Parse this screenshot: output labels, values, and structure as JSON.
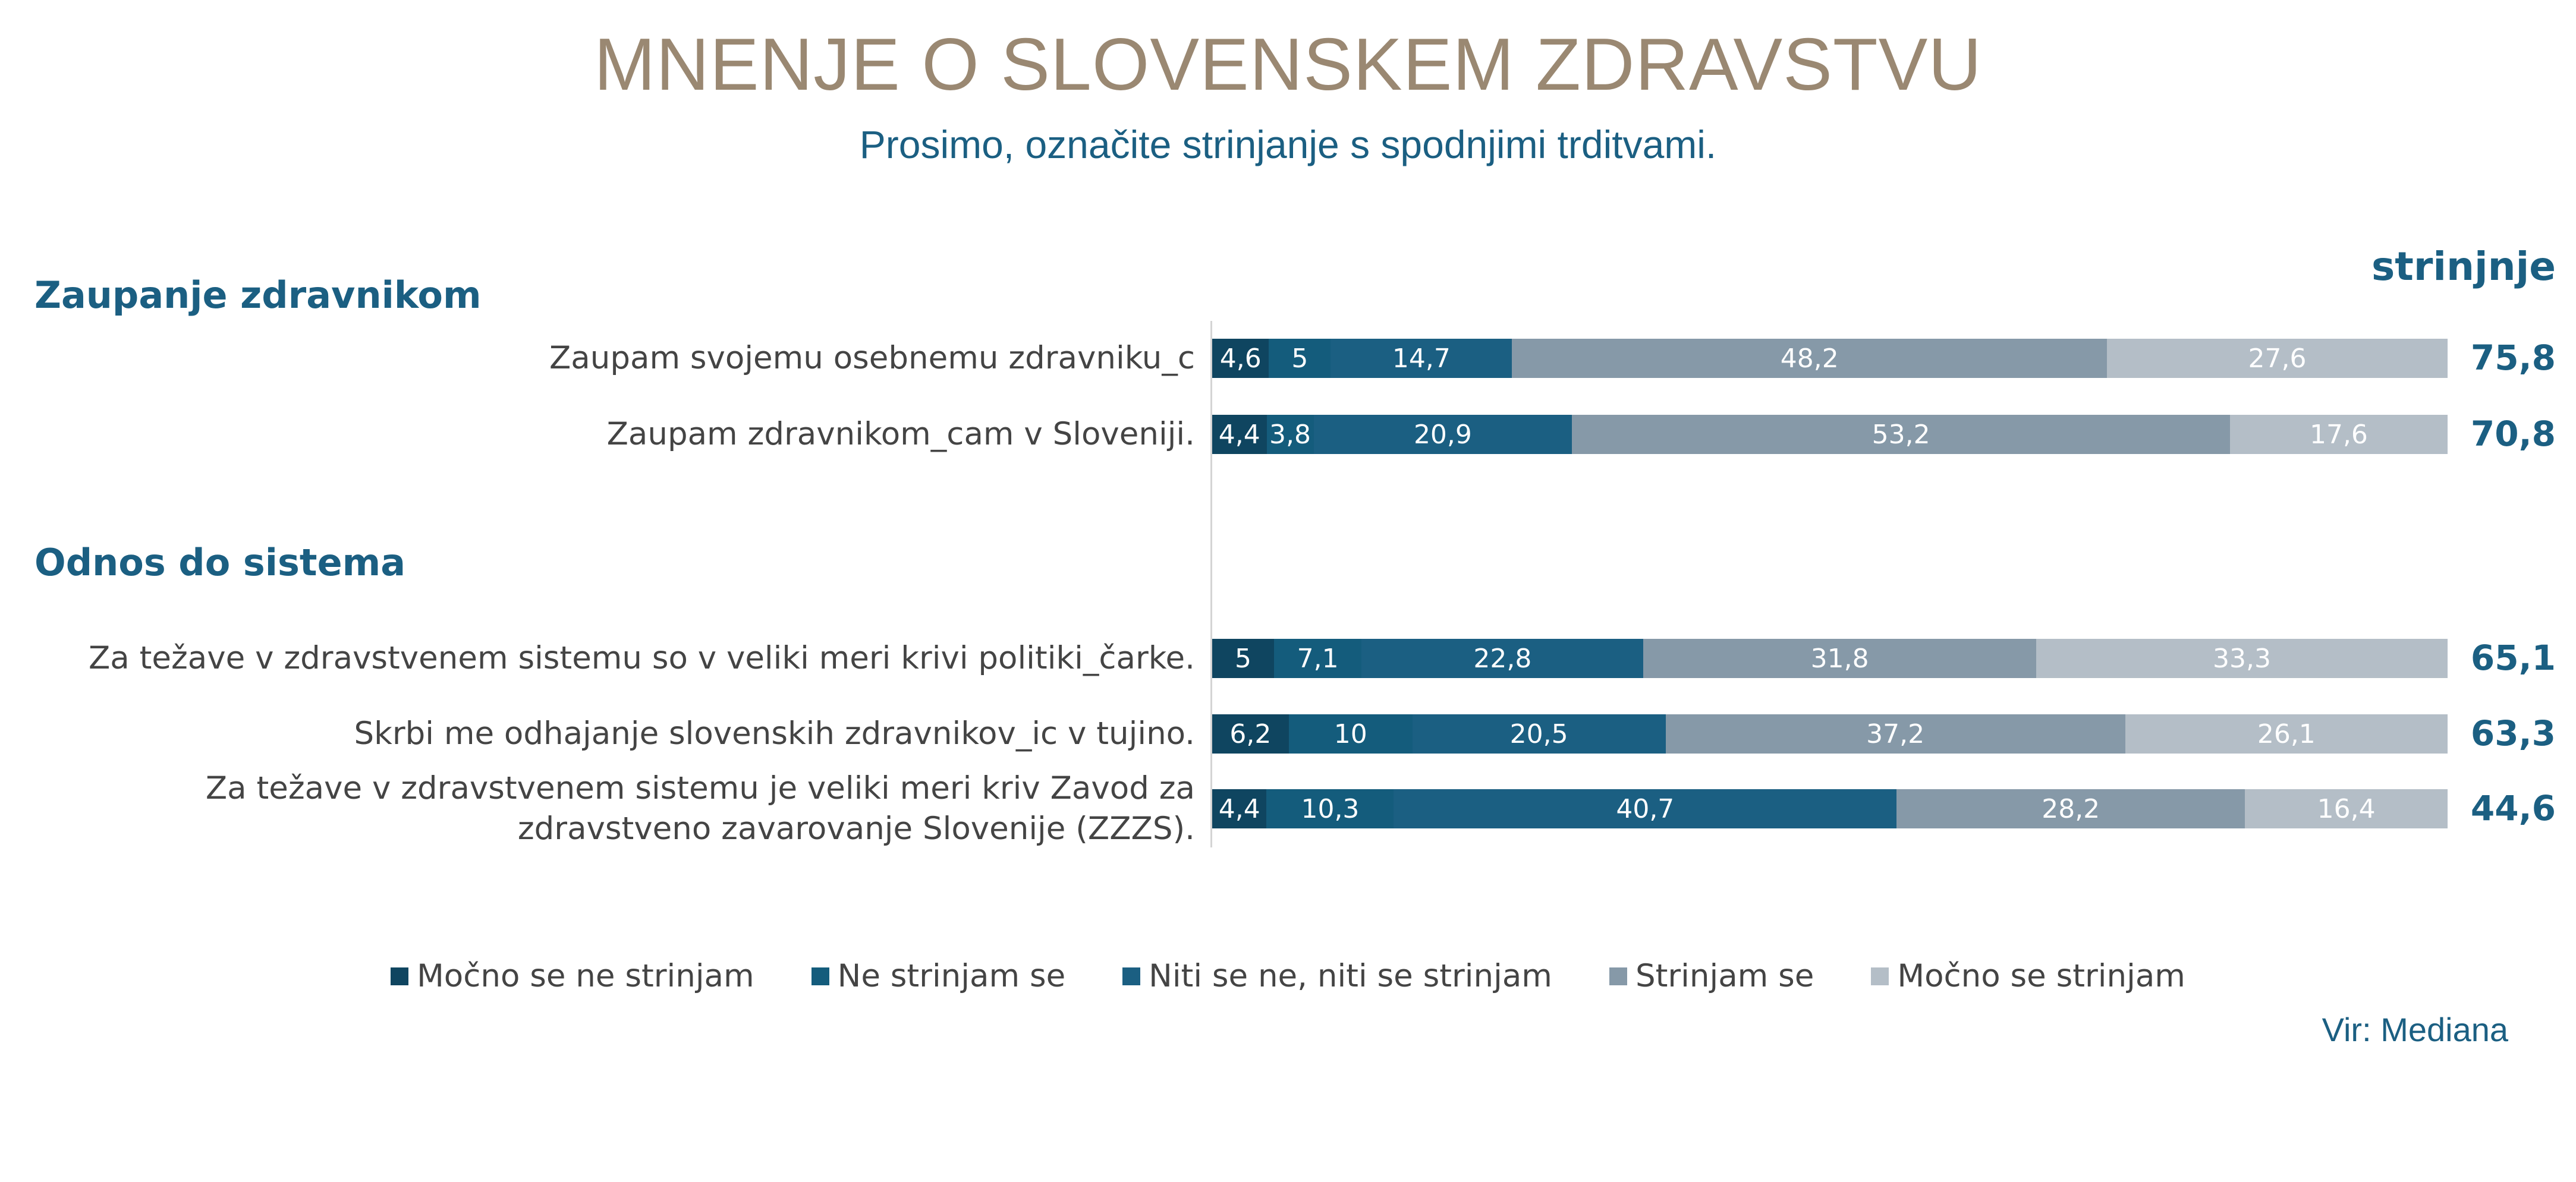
{
  "title": "MNENJE O SLOVENSKEM ZDRAVSTVU",
  "subtitle": "Prosimo, označite strinjanje s spodnjimi trditvami.",
  "total_header": "strinjnje",
  "source": "Vir: Mediana",
  "colors": {
    "mocno_ne": "#0F4560",
    "ne": "#145C7C",
    "niti": "#1B5F82",
    "strinjam": "#8699A8",
    "mocno_da": "#B4BEC7"
  },
  "chart_data": {
    "type": "bar",
    "orientation": "horizontal",
    "stacked": true,
    "xlim": [
      0,
      100
    ],
    "legend_position": "bottom",
    "series": [
      {
        "name": "Močno se ne strinjam",
        "color": "#0F4560"
      },
      {
        "name": "Ne strinjam se",
        "color": "#145C7C"
      },
      {
        "name": "Niti se ne, niti se strinjam",
        "color": "#1B5F82"
      },
      {
        "name": "Strinjam se",
        "color": "#8699A8"
      },
      {
        "name": "Močno se strinjam",
        "color": "#B4BEC7"
      }
    ],
    "sections": [
      {
        "name": "Zaupanje zdravnikom",
        "rows": [
          {
            "label": "Zaupam svojemu osebnemu zdravniku_c",
            "values": [
              4.6,
              5,
              14.7,
              48.2,
              27.6
            ],
            "value_labels": [
              "4,6",
              "5",
              "14,7",
              "48,2",
              "27,6"
            ],
            "total": "75,8"
          },
          {
            "label": "Zaupam zdravnikom_cam v Sloveniji.",
            "values": [
              4.4,
              3.8,
              20.9,
              53.2,
              17.6
            ],
            "value_labels": [
              "4,4",
              "3,8",
              "20,9",
              "53,2",
              "17,6"
            ],
            "total": "70,8"
          }
        ]
      },
      {
        "name": "Odnos do sistema",
        "rows": [
          {
            "label": "Za težave v zdravstvenem sistemu so v veliki meri krivi politiki_čarke.",
            "values": [
              5,
              7.1,
              22.8,
              31.8,
              33.3
            ],
            "value_labels": [
              "5",
              "7,1",
              "22,8",
              "31,8",
              "33,3"
            ],
            "total": "65,1"
          },
          {
            "label": "Skrbi me odhajanje slovenskih zdravnikov_ic v tujino.",
            "values": [
              6.2,
              10,
              20.5,
              37.2,
              26.1
            ],
            "value_labels": [
              "6,2",
              "10",
              "20,5",
              "37,2",
              "26,1"
            ],
            "total": "63,3"
          },
          {
            "label": "Za težave v zdravstvenem sistemu je veliki meri kriv Zavod za zdravstveno zavarovanje Slovenije (ZZZS).",
            "values": [
              4.4,
              10.3,
              40.7,
              28.2,
              16.4
            ],
            "value_labels": [
              "4,4",
              "10,3",
              "40,7",
              "28,2",
              "16,4"
            ],
            "total": "44,6"
          }
        ]
      }
    ]
  }
}
